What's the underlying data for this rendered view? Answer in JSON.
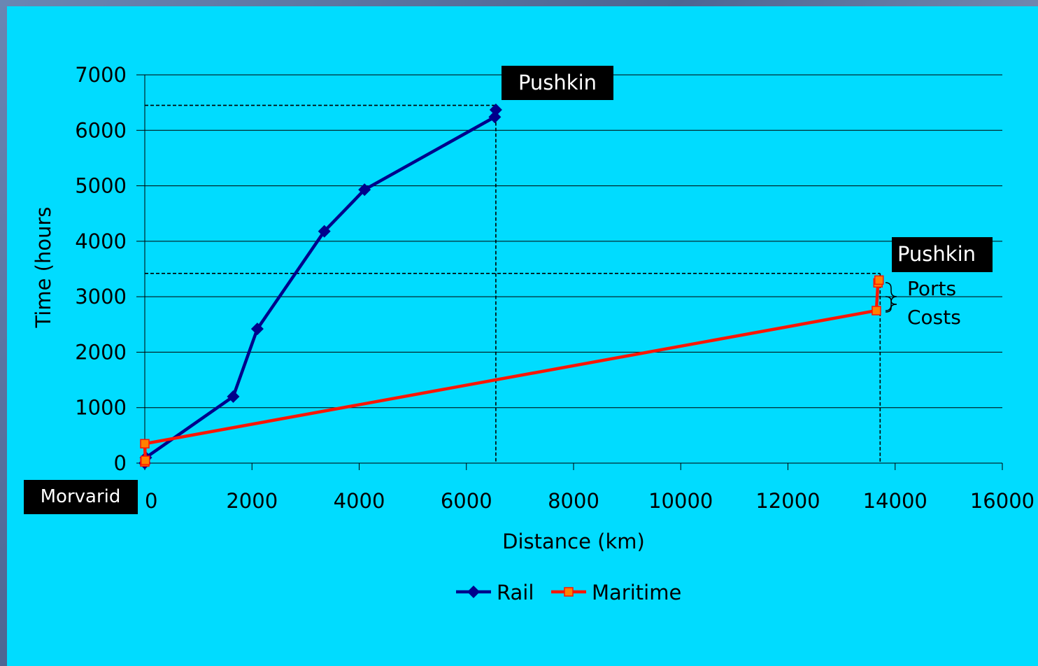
{
  "chart_data": {
    "type": "line",
    "title": "",
    "xlabel": "Distance (km)",
    "ylabel": "Time (hours",
    "xlim": [
      0,
      16000
    ],
    "ylim": [
      0,
      7000
    ],
    "xticks": [
      0,
      2000,
      4000,
      6000,
      8000,
      10000,
      12000,
      14000,
      16000
    ],
    "yticks": [
      0,
      1000,
      2000,
      3000,
      4000,
      5000,
      6000,
      7000
    ],
    "grid": "horizontal",
    "legend": "bottom",
    "colors": {
      "rail": "#00008b",
      "maritime": "#ff1500",
      "maritime_marker": "#ff8000",
      "background": "#00dcff"
    },
    "series": [
      {
        "name": "Rail",
        "marker": "diamond",
        "points": [
          [
            0,
            0
          ],
          [
            20,
            100
          ],
          [
            1650,
            1200
          ],
          [
            2100,
            2420
          ],
          [
            3350,
            4180
          ],
          [
            4100,
            4930
          ],
          [
            6530,
            6240
          ],
          [
            6550,
            6370
          ]
        ]
      },
      {
        "name": "Maritime",
        "marker": "square",
        "points": [
          [
            0,
            20
          ],
          [
            10,
            50
          ],
          [
            0,
            350
          ],
          [
            13650,
            2750
          ],
          [
            13680,
            3250
          ],
          [
            13700,
            3300
          ]
        ]
      }
    ],
    "annotations": {
      "origin_label": "Morvarid",
      "rail_end_label": "Pushkin",
      "maritime_end_label": "Pushkin",
      "ports_label": "Ports",
      "costs_label": "Costs"
    },
    "reference_lines": [
      {
        "x": 6550,
        "y": 6450
      },
      {
        "x": 13720,
        "y": 3420
      }
    ]
  }
}
